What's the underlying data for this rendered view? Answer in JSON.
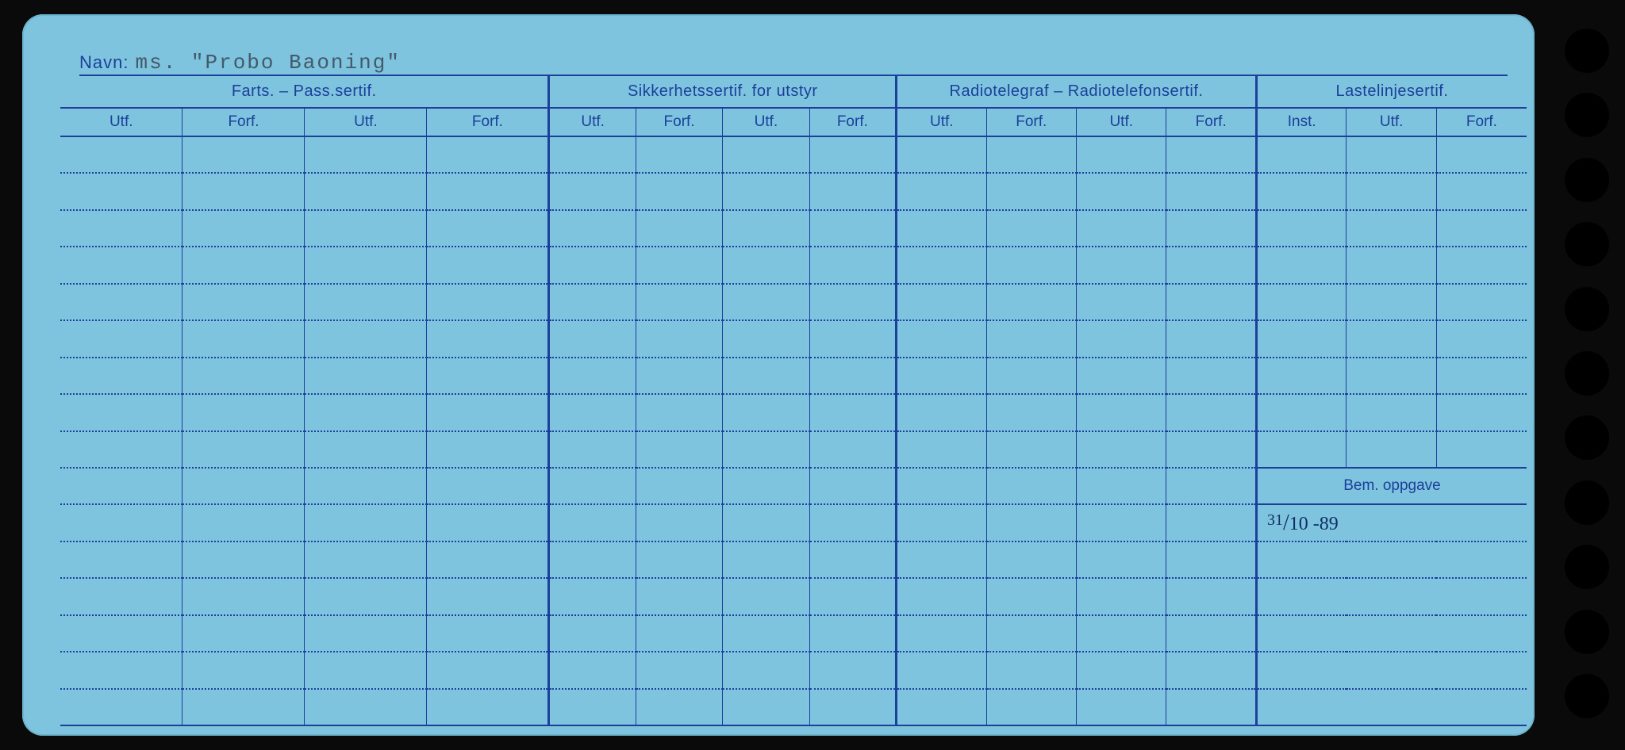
{
  "navn": {
    "label": "Navn:",
    "value": "ms. \"Probo Baoning\""
  },
  "colors": {
    "card_bg": "#7fc4de",
    "line": "#1b3f9b",
    "page_bg": "#0a0a0a",
    "typed_text": "#445a6a",
    "handwriting": "#0e2f66"
  },
  "groups": [
    {
      "title": "Farts. – Pass.sertif.",
      "subs": [
        "Utf.",
        "Forf.",
        "Utf.",
        "Forf."
      ]
    },
    {
      "title": "Sikkerhetssertif. for utstyr",
      "subs": [
        "Utf.",
        "Forf.",
        "Utf.",
        "Forf."
      ]
    },
    {
      "title": "Radiotelegraf – Radiotelefonsertif.",
      "subs": [
        "Utf.",
        "Forf.",
        "Utf.",
        "Forf."
      ]
    },
    {
      "title": "Lastelinjesertif.",
      "subs": [
        "Inst.",
        "Utf.",
        "Forf."
      ]
    }
  ],
  "bem": {
    "label": "Bem. oppgave",
    "value": "31/10 -89"
  },
  "row_count": 16,
  "bem_header_row": 9,
  "holes": 11
}
